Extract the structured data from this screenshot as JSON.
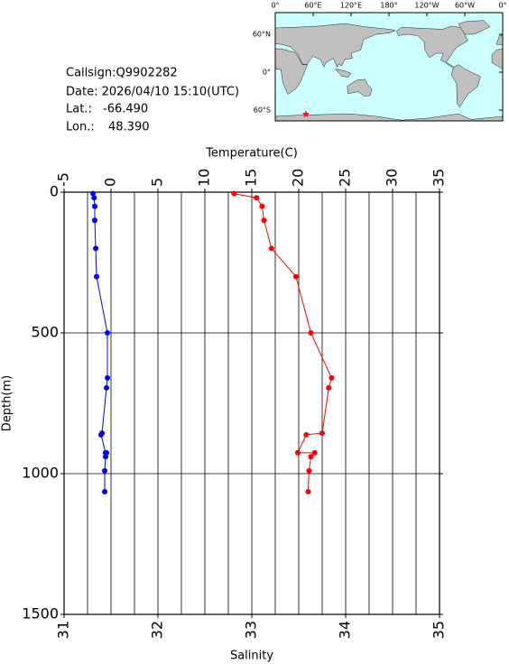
{
  "info": {
    "callsign": "Callsign:Q9902282",
    "date": "Date:  2026/04/10 15:10(UTC)",
    "lat_label": "Lat.:",
    "lat": {
      "value": -66.49,
      "label": "-66.490"
    },
    "lon_label": "Lon.:",
    "lon": {
      "value": 48.39,
      "label": "48.390"
    }
  },
  "map": {
    "lon_ticks": [
      {
        "value": 0,
        "label": "0°"
      },
      {
        "value": 60,
        "label": "60°E"
      },
      {
        "value": 120,
        "label": "120°E"
      },
      {
        "value": 180,
        "label": "180°"
      },
      {
        "value": 240,
        "label": "120°W"
      },
      {
        "value": 300,
        "label": "60°W"
      },
      {
        "value": 360,
        "label": "0°"
      }
    ],
    "lat_ticks": [
      {
        "value": 60,
        "label": "60°N"
      },
      {
        "value": 0,
        "label": "0°"
      },
      {
        "value": -60,
        "label": "60°S"
      }
    ],
    "station_color": "#ff0000"
  },
  "chart_data": {
    "type": "line",
    "x2label": "Temperature(C)",
    "xlabel": "Salinity",
    "ylabel": "Depth(m)",
    "y": [
      5,
      20,
      50,
      100,
      200,
      300,
      500,
      660,
      695,
      856,
      862,
      926,
      926,
      940,
      990,
      1064
    ],
    "ylim": [
      0,
      1500
    ],
    "y_inverted": true,
    "yticks": [
      0,
      500,
      1000,
      1500
    ],
    "xlim": [
      31,
      35
    ],
    "xticks": [
      31,
      32,
      33,
      34,
      35
    ],
    "x2lim": [
      -5,
      35
    ],
    "x2ticks": [
      -5,
      0,
      5,
      10,
      15,
      20,
      25,
      30,
      35
    ],
    "xgrid": [
      31.25,
      31.5,
      31.75,
      32,
      32.25,
      32.5,
      32.75,
      33,
      33.25,
      33.5,
      33.75,
      34,
      34.25,
      34.5,
      34.75
    ],
    "ygrid": [
      500,
      1000
    ],
    "series": [
      {
        "axis": "x2",
        "color": "#0000ff",
        "values": [
          -1.92,
          -1.8,
          -1.73,
          -1.73,
          -1.63,
          -1.54,
          -0.38,
          -0.38,
          -0.48,
          -0.96,
          -1.06,
          -0.58,
          -0.48,
          -0.58,
          -0.67,
          -0.67
        ]
      },
      {
        "axis": "x",
        "color": "#ff0000",
        "values": [
          32.81,
          33.05,
          33.11,
          33.13,
          33.21,
          33.47,
          33.63,
          33.85,
          33.82,
          33.75,
          33.58,
          33.49,
          33.67,
          33.63,
          33.61,
          33.6
        ]
      }
    ]
  }
}
